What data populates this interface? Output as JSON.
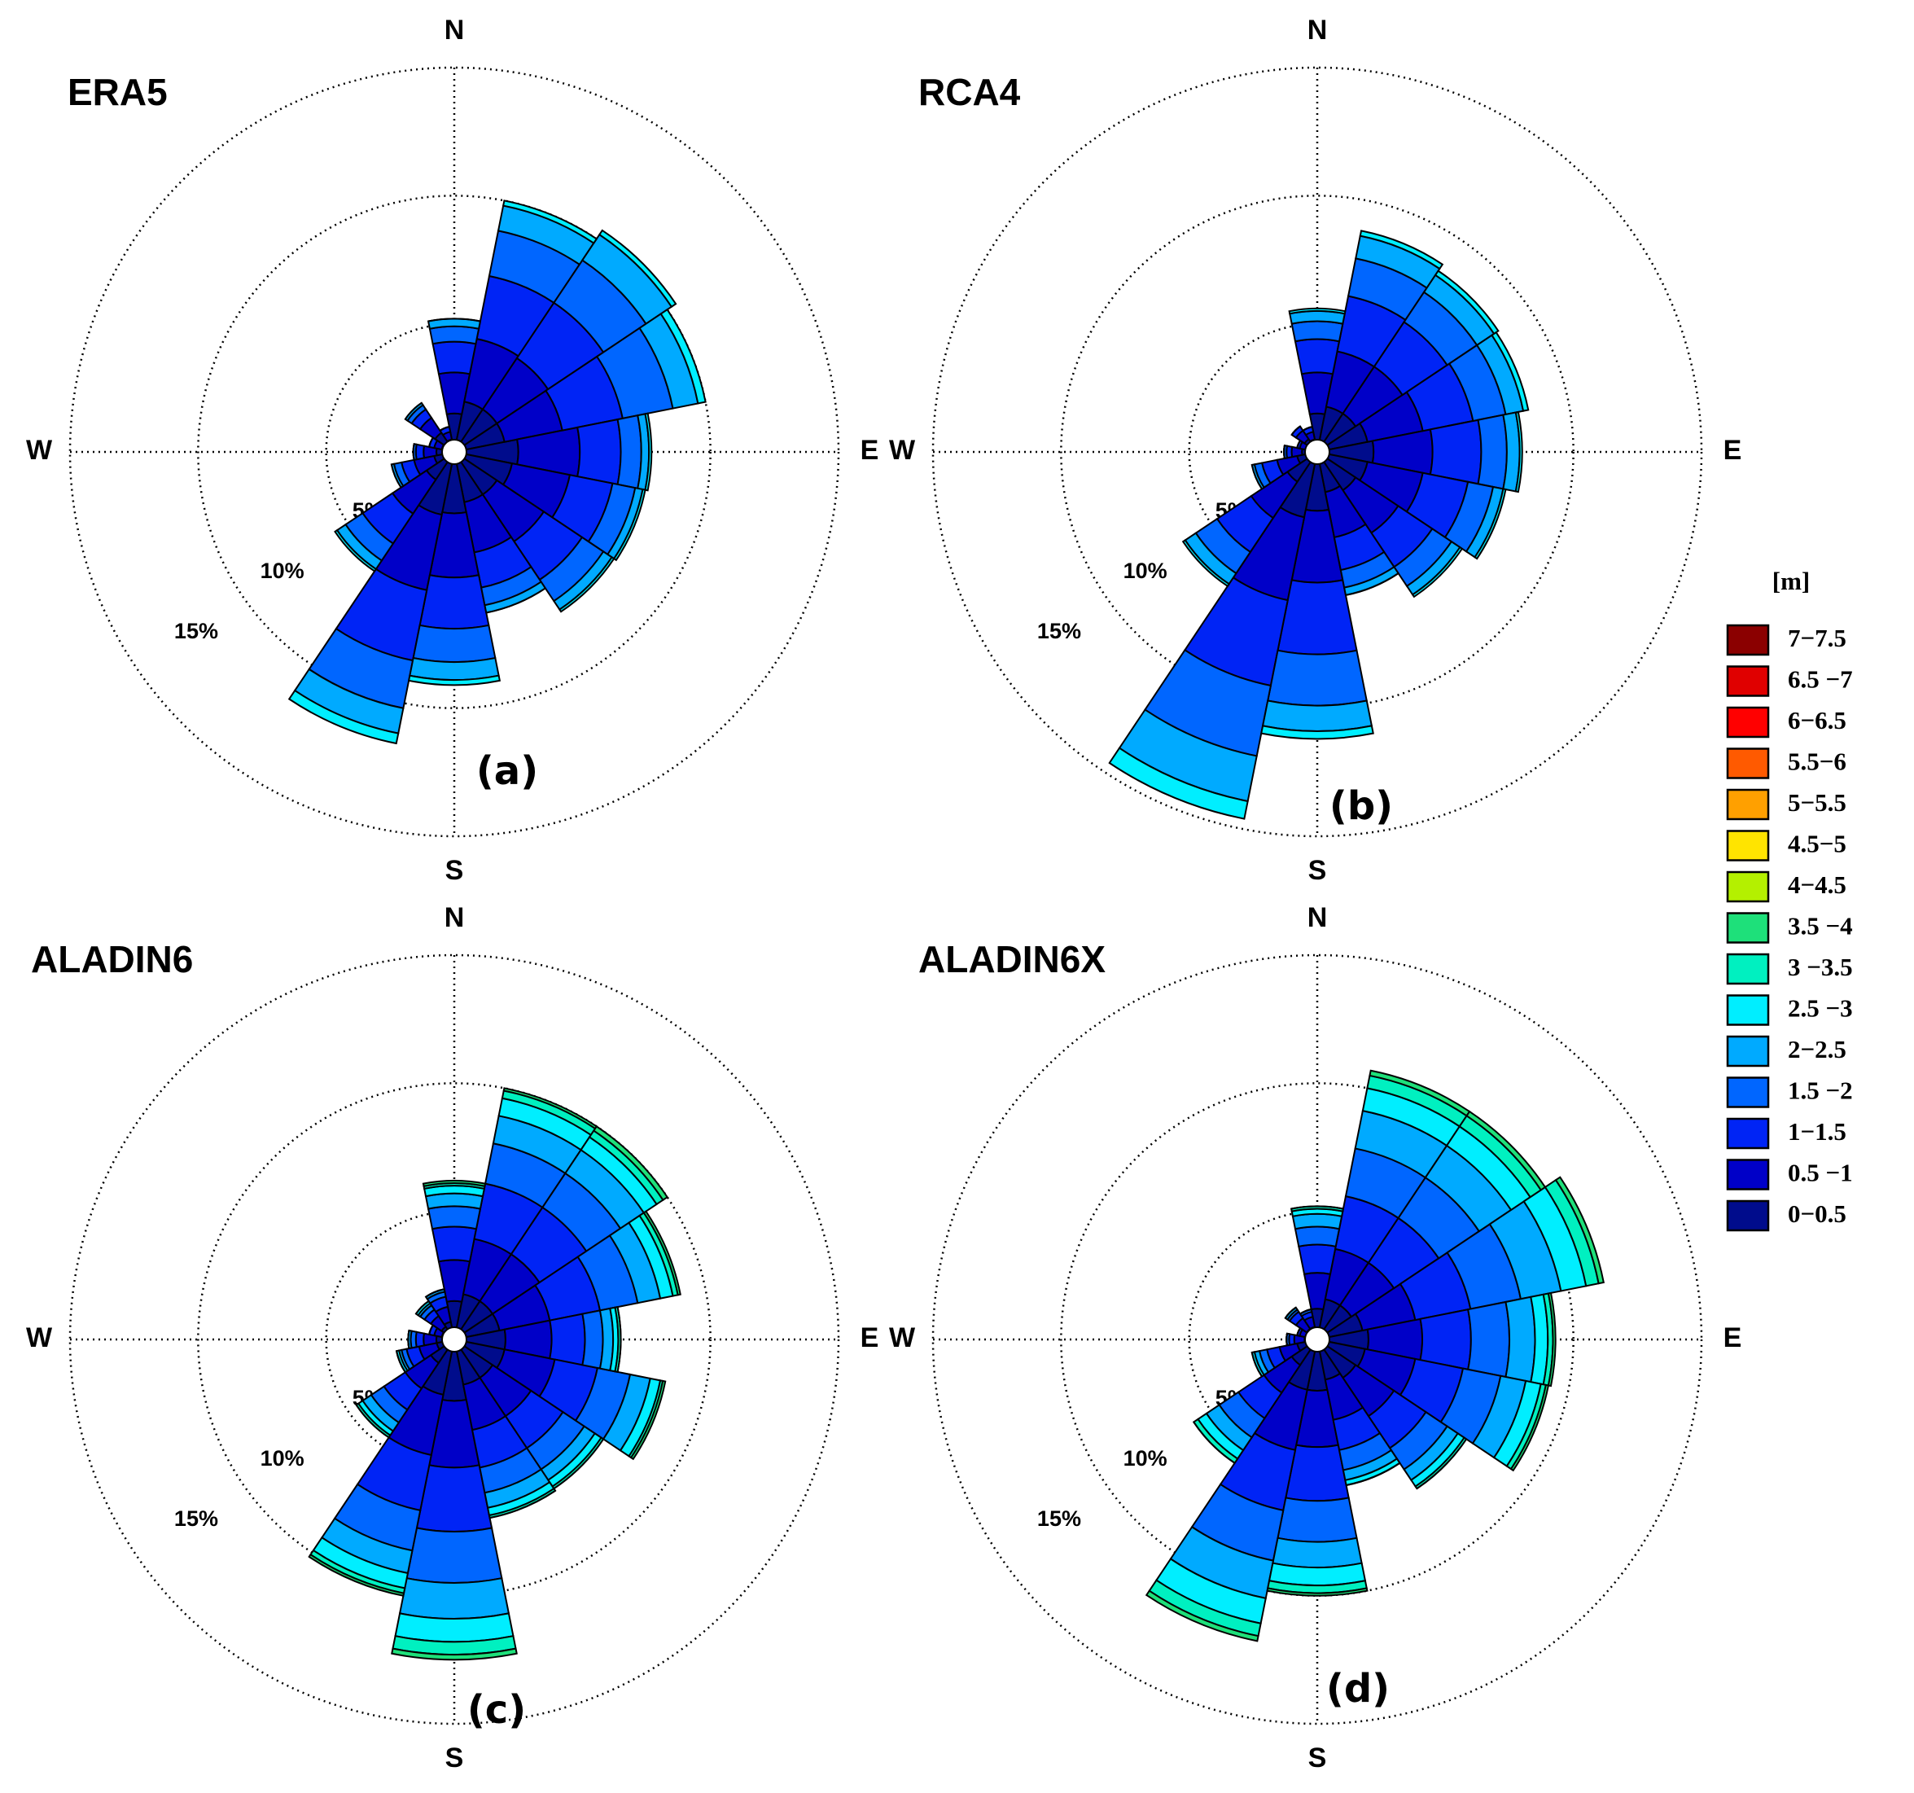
{
  "chart_data": [
    {
      "type": "windrose",
      "title": "ERA5",
      "panel_label": "(a)",
      "categories": [
        "N",
        null,
        null,
        null,
        "E",
        null,
        null,
        null,
        "S",
        null,
        null,
        null,
        "W",
        null,
        null,
        null
      ],
      "rlim": [
        0,
        15
      ],
      "rticks": [
        {
          "value": 5,
          "label": "5%"
        },
        {
          "value": 10,
          "label": "10%"
        },
        {
          "value": 15,
          "label": "15%"
        }
      ],
      "series": [
        {
          "name": "0−0.5",
          "color": "#000c8c",
          "values": [
            1.5,
            2.0,
            2.0,
            2.0,
            2.5,
            2.3,
            2.0,
            2.0,
            2.4,
            2.5,
            1.3,
            0.8,
            0.7,
            0.5,
            0.9,
            0.5
          ]
        },
        {
          "name": "0.5 −1",
          "color": "#0000c8",
          "values": [
            1.6,
            2.5,
            2.4,
            2.3,
            2.4,
            2.3,
            2.2,
            2.0,
            2.5,
            3.0,
            1.6,
            0.8,
            0.5,
            0.3,
            0.7,
            0.3
          ]
        },
        {
          "name": "1−1.5",
          "color": "#0024f5",
          "values": [
            1.2,
            2.5,
            2.6,
            2.4,
            1.6,
            1.7,
            1.8,
            1.4,
            2.0,
            2.8,
            1.4,
            0.5,
            0.3,
            0.2,
            0.4,
            0.2
          ]
        },
        {
          "name": "1.5 −2",
          "color": "#0066ff",
          "values": [
            0.6,
            1.8,
            2.0,
            2.0,
            0.8,
            0.9,
            1.0,
            0.7,
            1.3,
            1.9,
            0.8,
            0.3,
            0.1,
            0,
            0.2,
            0
          ]
        },
        {
          "name": "2−2.5",
          "color": "#00aaff",
          "values": [
            0.3,
            1.0,
            1.2,
            1.0,
            0.3,
            0.3,
            0.4,
            0.3,
            0.7,
            1.0,
            0.4,
            0.1,
            0,
            0,
            0.1,
            0
          ]
        },
        {
          "name": "2.5 −3",
          "color": "#00eeff",
          "values": [
            0,
            0.2,
            0.2,
            0.3,
            0.1,
            0.1,
            0.1,
            0,
            0.2,
            0.4,
            0.1,
            0,
            0,
            0,
            0,
            0
          ]
        }
      ]
    },
    {
      "type": "windrose",
      "title": "RCA4",
      "panel_label": "(b)",
      "categories": [
        "N",
        null,
        null,
        null,
        "E",
        null,
        null,
        null,
        "S",
        null,
        null,
        null,
        "W",
        null,
        null,
        null
      ],
      "rlim": [
        0,
        15
      ],
      "rticks": [
        {
          "value": 5,
          "label": "5%"
        },
        {
          "value": 10,
          "label": "10%"
        },
        {
          "value": 15,
          "label": "15%"
        }
      ],
      "series": [
        {
          "name": "0−0.5",
          "color": "#000c8c",
          "values": [
            1.5,
            1.8,
            1.8,
            2.0,
            2.2,
            2.0,
            1.8,
            1.6,
            2.3,
            2.6,
            1.4,
            0.8,
            0.6,
            0.4,
            0.6,
            0.5
          ]
        },
        {
          "name": "0.5 −1",
          "color": "#0000c8",
          "values": [
            1.6,
            2.2,
            2.2,
            2.2,
            2.3,
            2.2,
            2.0,
            1.8,
            2.8,
            3.3,
            1.7,
            0.8,
            0.4,
            0.3,
            0.4,
            0.3
          ]
        },
        {
          "name": "1−1.5",
          "color": "#0024f5",
          "values": [
            1.3,
            2.2,
            2.1,
            2.0,
            1.9,
            1.8,
            1.6,
            1.3,
            2.8,
            3.4,
            1.6,
            0.6,
            0.2,
            0.1,
            0.2,
            0.2
          ]
        },
        {
          "name": "1.5 −2",
          "color": "#0066ff",
          "values": [
            0.7,
            1.5,
            1.4,
            1.3,
            1.0,
            1.0,
            0.9,
            0.7,
            2.0,
            2.8,
            1.0,
            0.3,
            0.1,
            0,
            0,
            0
          ]
        },
        {
          "name": "2−2.5",
          "color": "#00aaff",
          "values": [
            0.4,
            0.9,
            0.8,
            0.7,
            0.5,
            0.4,
            0.4,
            0.3,
            1.0,
            1.8,
            0.5,
            0.1,
            0,
            0,
            0,
            0
          ]
        },
        {
          "name": "2.5 −3",
          "color": "#00eeff",
          "values": [
            0.1,
            0.2,
            0.2,
            0.2,
            0.1,
            0.1,
            0.1,
            0,
            0.3,
            0.7,
            0.1,
            0,
            0,
            0,
            0,
            0
          ]
        }
      ]
    },
    {
      "type": "windrose",
      "title": "ALADIN6",
      "panel_label": "(c)",
      "categories": [
        "N",
        null,
        null,
        null,
        "E",
        null,
        null,
        null,
        "S",
        null,
        null,
        null,
        "W",
        null,
        null,
        null
      ],
      "rlim": [
        0,
        15
      ],
      "rticks": [
        {
          "value": 5,
          "label": "5%"
        },
        {
          "value": 10,
          "label": "10%"
        },
        {
          "value": 15,
          "label": "15%"
        }
      ],
      "series": [
        {
          "name": "0−0.5",
          "color": "#000c8c",
          "values": [
            1.5,
            1.8,
            1.8,
            1.8,
            2.0,
            2.0,
            1.8,
            1.8,
            2.4,
            2.2,
            1.1,
            0.7,
            0.7,
            0.5,
            0.6,
            0.7
          ]
        },
        {
          "name": "0.5 −1",
          "color": "#0000c8",
          "values": [
            1.6,
            2.2,
            2.2,
            2.0,
            1.8,
            2.0,
            1.8,
            1.8,
            2.6,
            2.4,
            1.2,
            0.7,
            0.5,
            0.3,
            0.5,
            0.6
          ]
        },
        {
          "name": "1−1.5",
          "color": "#0024f5",
          "values": [
            1.3,
            2.2,
            2.2,
            2.0,
            1.3,
            1.7,
            1.5,
            1.5,
            2.5,
            2.2,
            1.0,
            0.5,
            0.3,
            0.2,
            0.3,
            0.4
          ]
        },
        {
          "name": "1.5 −2",
          "color": "#0066ff",
          "values": [
            0.8,
            1.6,
            1.6,
            1.5,
            0.7,
            1.3,
            1.0,
            1.0,
            2.0,
            1.6,
            0.6,
            0.2,
            0.2,
            0,
            0.2,
            0.2
          ]
        },
        {
          "name": "2−2.5",
          "color": "#00aaff",
          "values": [
            0.5,
            1.1,
            1.1,
            0.9,
            0.4,
            0.8,
            0.5,
            0.6,
            1.4,
            0.9,
            0.4,
            0.1,
            0.1,
            0,
            0.1,
            0.1
          ]
        },
        {
          "name": "2.5 −3",
          "color": "#00eeff",
          "values": [
            0.3,
            0.7,
            0.6,
            0.5,
            0.2,
            0.4,
            0.3,
            0.3,
            0.9,
            0.6,
            0.2,
            0.1,
            0,
            0,
            0.1,
            0
          ]
        },
        {
          "name": "3 −3.5",
          "color": "#00f0c0",
          "values": [
            0.1,
            0.3,
            0.3,
            0.2,
            0.1,
            0.1,
            0.1,
            0.1,
            0.5,
            0.2,
            0.1,
            0,
            0,
            0,
            0,
            0
          ]
        },
        {
          "name": "3.5 −4",
          "color": "#1ee07a",
          "values": [
            0.1,
            0.1,
            0.2,
            0.1,
            0,
            0.1,
            0,
            0,
            0.2,
            0.1,
            0,
            0,
            0,
            0,
            0,
            0
          ]
        }
      ]
    },
    {
      "type": "windrose",
      "title": "ALADIN6X",
      "panel_label": "(d)",
      "categories": [
        "N",
        null,
        null,
        null,
        "E",
        null,
        null,
        null,
        "S",
        null,
        null,
        null,
        "W",
        null,
        null,
        null
      ],
      "rlim": [
        0,
        15
      ],
      "rticks": [
        {
          "value": 5,
          "label": "5%"
        },
        {
          "value": 10,
          "label": "10%"
        },
        {
          "value": 15,
          "label": "15%"
        }
      ],
      "series": [
        {
          "name": "0−0.5",
          "color": "#000c8c",
          "values": [
            1.2,
            1.6,
            1.6,
            1.8,
            2.0,
            1.9,
            1.8,
            1.6,
            2.0,
            2.0,
            1.2,
            0.8,
            0.5,
            0.4,
            0.5,
            0.5
          ]
        },
        {
          "name": "0.5 −1",
          "color": "#0000c8",
          "values": [
            1.4,
            2.0,
            2.0,
            2.1,
            2.1,
            2.0,
            1.8,
            1.6,
            2.2,
            2.4,
            1.3,
            0.7,
            0.4,
            0.3,
            0.5,
            0.4
          ]
        },
        {
          "name": "1−1.5",
          "color": "#0024f5",
          "values": [
            1.1,
            2.1,
            2.1,
            2.2,
            1.9,
            1.9,
            1.5,
            1.2,
            2.1,
            2.4,
            1.2,
            0.5,
            0.2,
            0.1,
            0.3,
            0.2
          ]
        },
        {
          "name": "1.5 −2",
          "color": "#0066ff",
          "values": [
            0.7,
            1.9,
            1.9,
            2.0,
            1.5,
            1.5,
            1.0,
            0.8,
            1.6,
            2.0,
            0.9,
            0.3,
            0.1,
            0,
            0.1,
            0.1
          ]
        },
        {
          "name": "2−2.5",
          "color": "#00aaff",
          "values": [
            0.5,
            1.5,
            1.5,
            1.6,
            1.0,
            1.0,
            0.5,
            0.4,
            1.0,
            1.5,
            0.6,
            0.2,
            0,
            0,
            0.1,
            0
          ]
        },
        {
          "name": "2.5 −3",
          "color": "#00eeff",
          "values": [
            0.2,
            0.9,
            0.9,
            1.0,
            0.5,
            0.6,
            0.3,
            0.2,
            0.7,
            1.0,
            0.4,
            0.1,
            0,
            0,
            0,
            0
          ]
        },
        {
          "name": "3 −3.5",
          "color": "#00f0c0",
          "values": [
            0.1,
            0.5,
            0.5,
            0.5,
            0.2,
            0.2,
            0.1,
            0,
            0.3,
            0.5,
            0.2,
            0,
            0,
            0,
            0,
            0
          ]
        },
        {
          "name": "3.5 −4",
          "color": "#1ee07a",
          "values": [
            0,
            0.2,
            0.2,
            0.2,
            0.1,
            0.1,
            0,
            0,
            0.1,
            0.2,
            0,
            0,
            0,
            0,
            0,
            0
          ]
        }
      ]
    }
  ],
  "legend": {
    "title": "[m]",
    "items": [
      {
        "name": "7−7.5",
        "color": "#8b0000"
      },
      {
        "name": "6.5 −7",
        "color": "#e00000"
      },
      {
        "name": "6−6.5",
        "color": "#ff0000"
      },
      {
        "name": "5.5−6",
        "color": "#ff5a00"
      },
      {
        "name": "5−5.5",
        "color": "#ffa000"
      },
      {
        "name": "4.5−5",
        "color": "#ffe400"
      },
      {
        "name": "4−4.5",
        "color": "#b4f000"
      },
      {
        "name": "3.5 −4",
        "color": "#1ee07a"
      },
      {
        "name": "3 −3.5",
        "color": "#00f0c0"
      },
      {
        "name": "2.5 −3",
        "color": "#00eeff"
      },
      {
        "name": "2−2.5",
        "color": "#00aaff"
      },
      {
        "name": "1.5 −2",
        "color": "#0066ff"
      },
      {
        "name": "1−1.5",
        "color": "#0024f5"
      },
      {
        "name": "0.5 −1",
        "color": "#0000c8"
      },
      {
        "name": "0−0.5",
        "color": "#000c8c"
      }
    ]
  }
}
